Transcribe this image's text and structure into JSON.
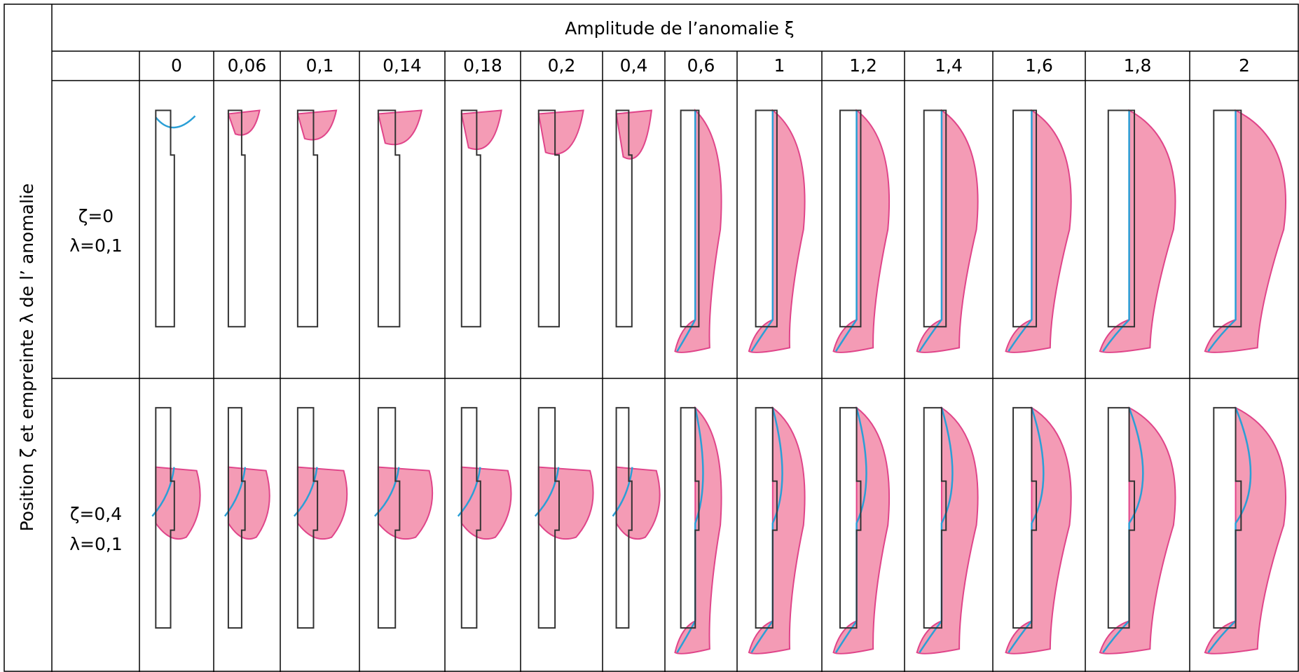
{
  "header": {
    "title": "Amplitude de l’anomalie ξ"
  },
  "table": {
    "row_axis_label": "Position ζ et empreinte λ de l’   anomalie",
    "columns": [
      "0",
      "0,06",
      "0,1",
      "0,14",
      "0,18",
      "0,2",
      "0,4",
      "0,6",
      "1",
      "1,2",
      "1,4",
      "1,6",
      "1,8",
      "2"
    ],
    "rows": [
      {
        "position": "ζ=0",
        "footprint": "λ=0,1"
      },
      {
        "position": "ζ=0,4",
        "footprint": "λ=0,1"
      }
    ]
  }
}
